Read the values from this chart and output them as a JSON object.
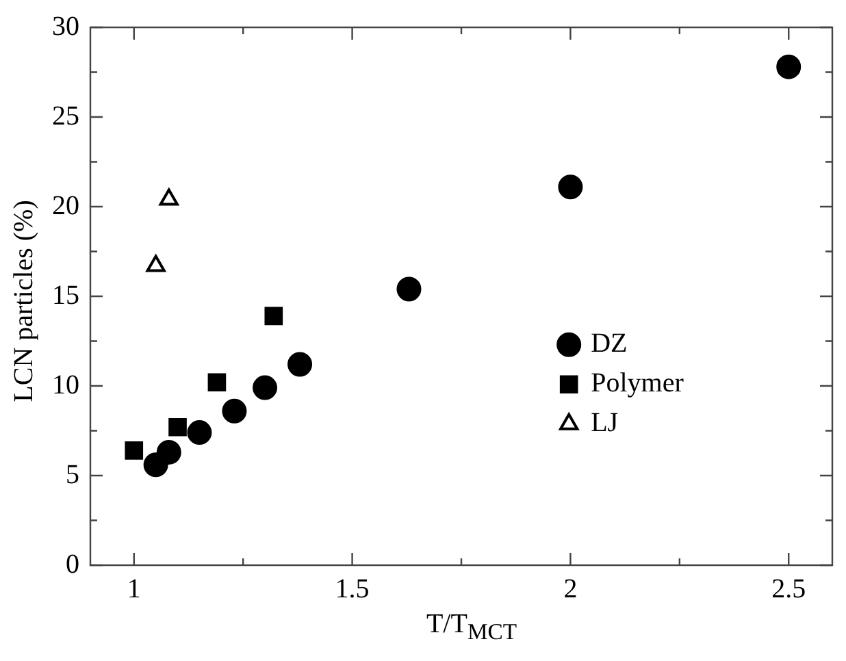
{
  "chart_data": {
    "type": "scatter",
    "xlabel": "T/T$_{MCT}$",
    "ylabel": "LCN particles (%)",
    "xlim": [
      0.9,
      2.6
    ],
    "ylim": [
      0,
      30
    ],
    "xticks": [
      1,
      {
        "value": 1.25,
        "label": null
      },
      1.5,
      {
        "value": 1.75,
        "label": null
      },
      2,
      {
        "value": 2.25,
        "label": null
      },
      2.5
    ],
    "yticks": [
      0,
      {
        "value": 2.5,
        "label": null
      },
      5,
      {
        "value": 7.5,
        "label": null
      },
      10,
      {
        "value": 12.5,
        "label": null
      },
      15,
      {
        "value": 17.5,
        "label": null
      },
      20,
      {
        "value": 22.5,
        "label": null
      },
      25,
      {
        "value": 27.5,
        "label": null
      },
      30
    ],
    "grid": false,
    "legend": "right",
    "series": [
      {
        "name": "DZ",
        "color": "#000000",
        "marker": "circle",
        "x": [
          1.05,
          1.08,
          1.15,
          1.23,
          1.3,
          1.38,
          1.63,
          2.0,
          2.5
        ],
        "values": [
          5.6,
          6.3,
          7.4,
          8.6,
          9.9,
          11.2,
          15.4,
          21.1,
          27.8
        ]
      },
      {
        "name": "Polymer",
        "color": "#000000",
        "marker": "square",
        "x": [
          1.0,
          1.1,
          1.19,
          1.32
        ],
        "values": [
          6.4,
          7.7,
          10.2,
          13.9
        ]
      },
      {
        "name": "LJ",
        "color": "#000000",
        "marker": "triangle",
        "x": [
          1.05,
          1.08
        ],
        "values": [
          16.7,
          20.4
        ]
      }
    ]
  }
}
